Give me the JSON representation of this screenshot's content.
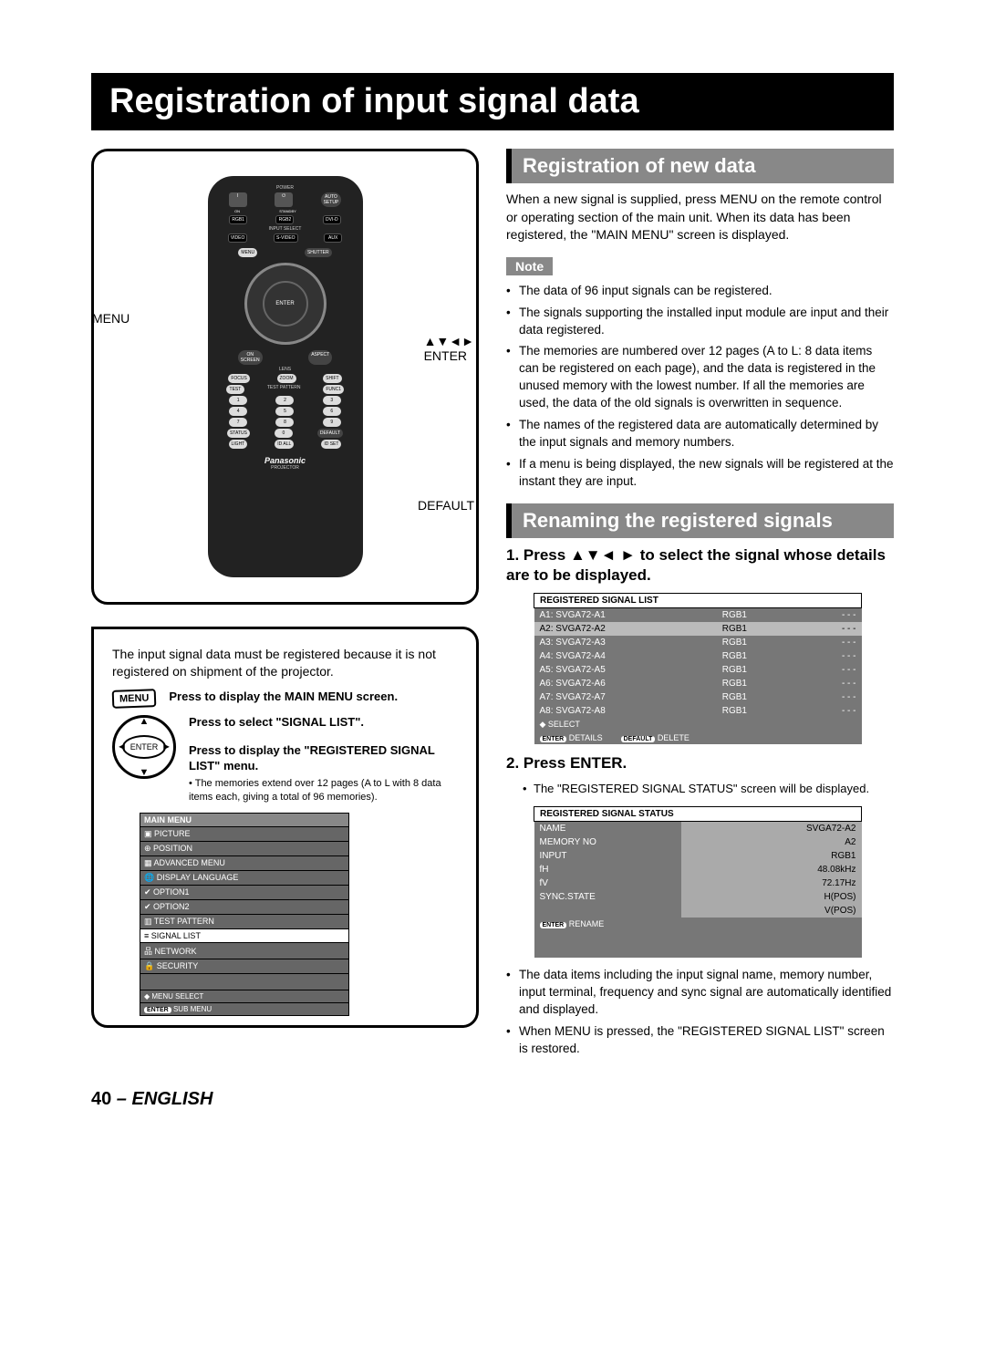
{
  "page_title": "Registration of input signal data",
  "footer": {
    "page": "40",
    "dash": " – ",
    "lang": "ENGLISH"
  },
  "remote": {
    "callouts": {
      "menu": "MENU",
      "arrows": "▲▼◄►\nENTER",
      "default": "DEFAULT"
    },
    "labels": {
      "power": "POWER",
      "on": "ON",
      "standby": "STANDBY",
      "auto": "AUTO\nSETUP",
      "rgb1": "RGB1",
      "rgb2": "RGB2",
      "dvi": "DVI-D",
      "input_select": "INPUT SELECT",
      "video": "VIDEO",
      "svideo": "S-VIDEO",
      "aux": "AUX",
      "menu": "MENU",
      "shutter": "SHUTTER",
      "enter": "ENTER",
      "onscreen": "ON\nSCREEN",
      "aspect": "ASPECT",
      "lens": "LENS",
      "focus": "FOCUS",
      "zoom": "ZOOM",
      "shift": "SHIFT",
      "test": "TEST",
      "testpattern": "TEST PATTERN",
      "func1": "FUNC1",
      "status": "STATUS",
      "default": "DEFAULT",
      "light": "LIGHT",
      "idall": "ID ALL",
      "idset": "ID SET",
      "brand": "Panasonic",
      "projector": "PROJECTOR",
      "nums": [
        "1",
        "2",
        "3",
        "4",
        "5",
        "6",
        "7",
        "8",
        "9",
        "0"
      ]
    }
  },
  "info_panel": {
    "intro": "The input signal data must be registered because it is not registered on shipment of the projector.",
    "step1": {
      "icon": "MENU",
      "text": "Press to display the MAIN MENU screen."
    },
    "step2": {
      "icon": "ENTER",
      "text": "Press to select \"SIGNAL LIST\"."
    },
    "step3": {
      "text": "Press to display the \"REGISTERED SIGNAL LIST\" menu.",
      "sub": "The memories extend over 12 pages (A to L with 8 data items each, giving a total of 96 memories)."
    },
    "main_menu": {
      "title": "MAIN MENU",
      "items": [
        {
          "icon": "▣",
          "label": "PICTURE"
        },
        {
          "icon": "⊕",
          "label": "POSITION"
        },
        {
          "icon": "▦",
          "label": "ADVANCED MENU"
        },
        {
          "icon": "🌐",
          "label": "DISPLAY LANGUAGE"
        },
        {
          "icon": "✔",
          "label": "OPTION1"
        },
        {
          "icon": "✔",
          "label": "OPTION2"
        },
        {
          "icon": "▥",
          "label": "TEST PATTERN"
        },
        {
          "icon": "≡",
          "label": "SIGNAL LIST"
        },
        {
          "icon": "品",
          "label": "NETWORK"
        },
        {
          "icon": "🔒",
          "label": "SECURITY"
        }
      ],
      "footer1": "◆  MENU SELECT",
      "footer2_badge": "ENTER",
      "footer2": "SUB MENU"
    }
  },
  "right": {
    "sec1_title": "Registration of new data",
    "sec1_para": "When a new signal is supplied, press MENU on the remote control or operating section of the main unit. When its data has been registered, the \"MAIN MENU\" screen is displayed.",
    "note_label": "Note",
    "notes": [
      "The data of 96 input signals can be registered.",
      "The signals supporting the installed input module are input and their data registered.",
      "The memories are numbered over 12 pages (A to L: 8 data items can be registered on each page), and the data is registered in the unused memory with the lowest number. If all the memories are used, the data of the old signals is overwritten in sequence.",
      "The names of the registered data are automatically determined by the input signals and memory numbers.",
      "If a menu is being displayed, the new signals will be registered at the instant they are input."
    ],
    "sec2_title": "Renaming the registered signals",
    "step1": "1. Press ▲▼◄ ► to select the signal whose details are to be displayed.",
    "signal_list": {
      "title": "REGISTERED SIGNAL LIST",
      "rows": [
        {
          "name": "A1: SVGA72-A1",
          "input": "RGB1",
          "marks": "- - -",
          "sel": true
        },
        {
          "name": "A2: SVGA72-A2",
          "input": "RGB1",
          "marks": "- - -",
          "sel": false
        },
        {
          "name": "A3: SVGA72-A3",
          "input": "RGB1",
          "marks": "- - -",
          "sel": true
        },
        {
          "name": "A4: SVGA72-A4",
          "input": "RGB1",
          "marks": "- - -",
          "sel": true
        },
        {
          "name": "A5: SVGA72-A5",
          "input": "RGB1",
          "marks": "- - -",
          "sel": true
        },
        {
          "name": "A6: SVGA72-A6",
          "input": "RGB1",
          "marks": "- - -",
          "sel": true
        },
        {
          "name": "A7: SVGA72-A7",
          "input": "RGB1",
          "marks": "- - -",
          "sel": true
        },
        {
          "name": "A8: SVGA72-A8",
          "input": "RGB1",
          "marks": "- - -",
          "sel": true
        }
      ],
      "footer_select": "◆ SELECT",
      "footer_enter_badge": "ENTER",
      "footer_details": "DETAILS",
      "footer_default_badge": "DEFAULT",
      "footer_delete": "DELETE"
    },
    "step2": "2. Press ENTER.",
    "step2_sub": "The \"REGISTERED SIGNAL STATUS\" screen will be displayed.",
    "status": {
      "title": "REGISTERED SIGNAL STATUS",
      "rows": [
        {
          "label": "NAME",
          "val": "SVGA72-A2"
        },
        {
          "label": "MEMORY NO",
          "val": "A2"
        },
        {
          "label": "INPUT",
          "val": "RGB1"
        },
        {
          "label": "fH",
          "val": "48.08kHz"
        },
        {
          "label": "fV",
          "val": "72.17Hz"
        },
        {
          "label": "SYNC.STATE",
          "val": "H(POS)"
        },
        {
          "label": "",
          "val": "V(POS)"
        }
      ],
      "footer_badge": "ENTER",
      "footer": "RENAME"
    },
    "after_bullets": [
      "The data items including the input signal name, memory number, input terminal, frequency and sync signal are automatically identified and displayed.",
      "When MENU is pressed, the \"REGISTERED SIGNAL LIST\" screen is restored."
    ]
  }
}
